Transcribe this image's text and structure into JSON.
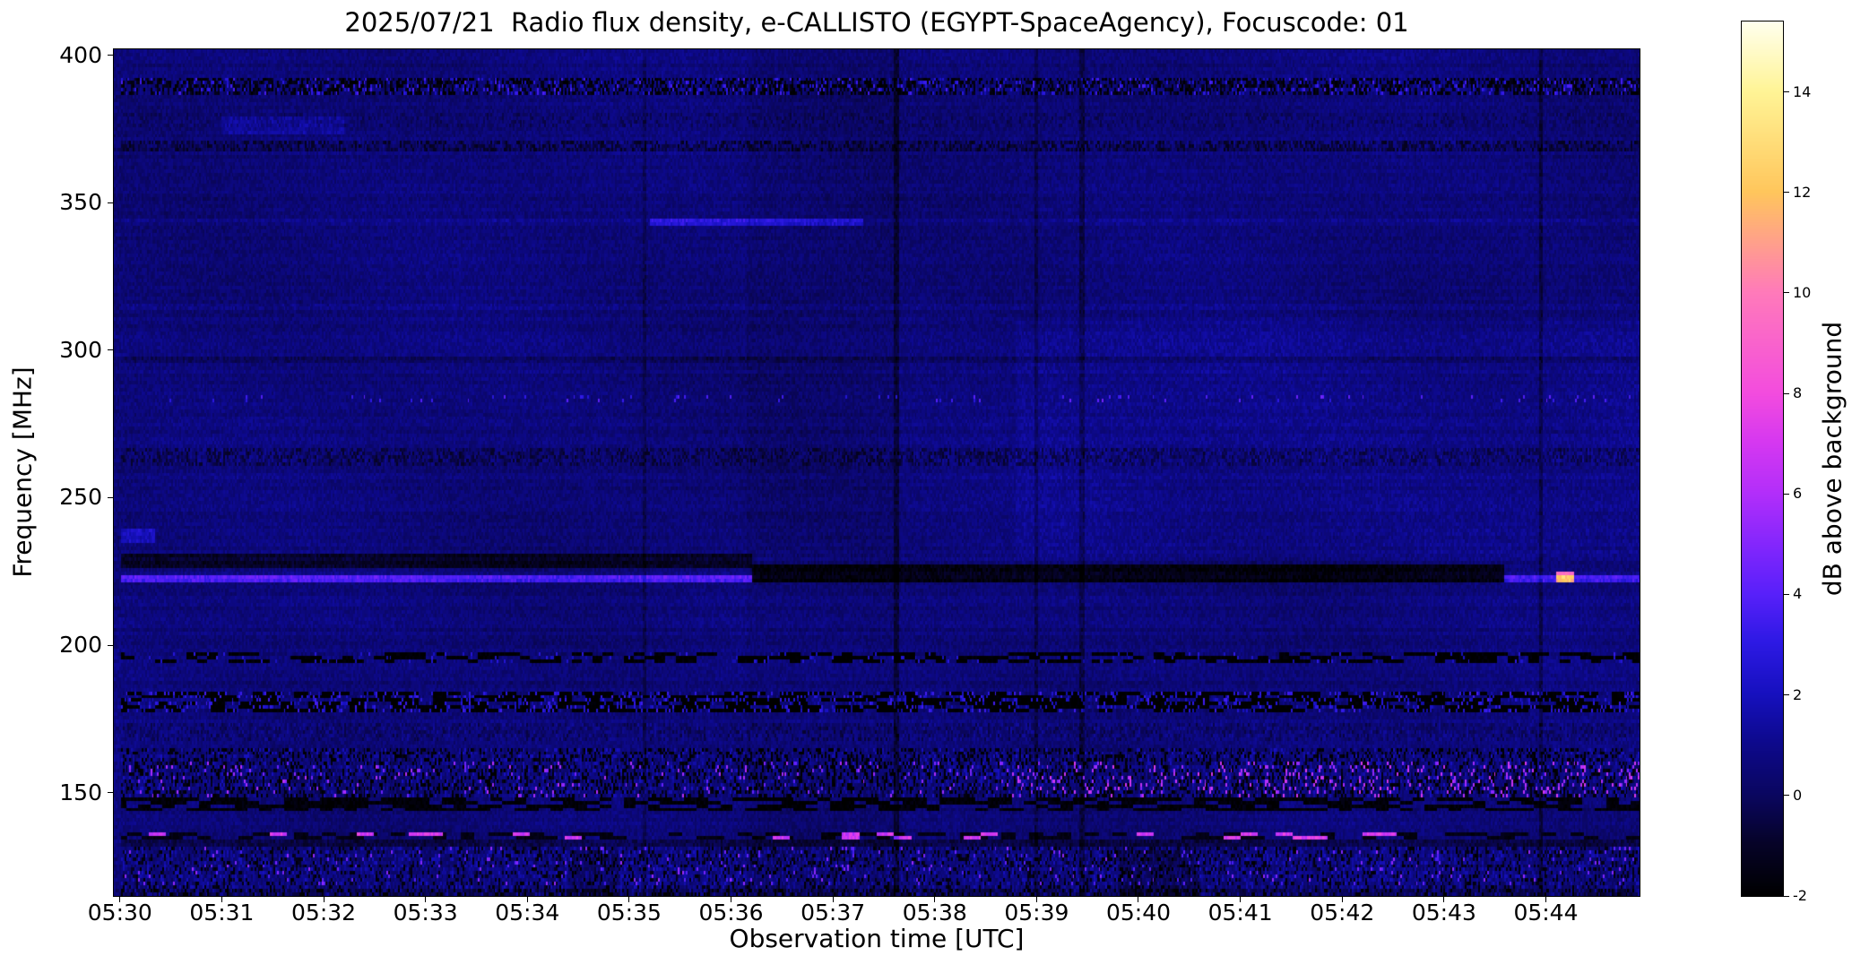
{
  "chart_data": {
    "type": "heatmap",
    "title": "2025/07/21  Radio flux density, e-CALLISTO (EGYPT-SpaceAgency), Focuscode: 01",
    "xlabel": "Observation time [UTC]",
    "ylabel": "Frequency [MHz]",
    "x_axis": {
      "start_minute_offset": -0.06,
      "end_minute_offset": 14.92,
      "tick_minutes": [
        0,
        1,
        2,
        3,
        4,
        5,
        6,
        7,
        8,
        9,
        10,
        11,
        12,
        13,
        14
      ],
      "tick_labels": [
        "05:30",
        "05:31",
        "05:32",
        "05:33",
        "05:34",
        "05:35",
        "05:36",
        "05:37",
        "05:38",
        "05:39",
        "05:40",
        "05:41",
        "05:42",
        "05:43",
        "05:44"
      ]
    },
    "y_axis": {
      "min_mhz": 115,
      "max_mhz": 402,
      "ticks": [
        150,
        200,
        250,
        300,
        350,
        400
      ],
      "tick_labels": [
        "150",
        "200",
        "250",
        "300",
        "350",
        "400"
      ]
    },
    "colorbar": {
      "label": "dB above background",
      "vmin": -2,
      "vmax": 15.4,
      "ticks": [
        -2,
        0,
        2,
        4,
        6,
        8,
        10,
        12,
        14
      ],
      "tick_labels": [
        "-2",
        "0",
        "2",
        "4",
        "6",
        "8",
        "10",
        "12",
        "14"
      ],
      "colormap_stops": [
        [
          0.0,
          [
            0,
            0,
            0
          ]
        ],
        [
          0.06,
          [
            6,
            3,
            40
          ]
        ],
        [
          0.115,
          [
            10,
            6,
            95
          ]
        ],
        [
          0.175,
          [
            13,
            9,
            140
          ]
        ],
        [
          0.23,
          [
            22,
            16,
            190
          ]
        ],
        [
          0.29,
          [
            45,
            25,
            228
          ]
        ],
        [
          0.345,
          [
            88,
            32,
            250
          ]
        ],
        [
          0.4,
          [
            130,
            38,
            252
          ]
        ],
        [
          0.46,
          [
            178,
            46,
            250
          ]
        ],
        [
          0.52,
          [
            214,
            56,
            240
          ]
        ],
        [
          0.575,
          [
            243,
            76,
            222
          ]
        ],
        [
          0.69,
          [
            255,
            122,
            186
          ]
        ],
        [
          0.805,
          [
            255,
            198,
            92
          ]
        ],
        [
          0.92,
          [
            255,
            244,
            150
          ]
        ],
        [
          1.0,
          [
            255,
            255,
            238
          ]
        ]
      ]
    },
    "background": {
      "base": 0.55,
      "noise": 1.0,
      "row_noise": 0.45,
      "mottle_amp": 0.22
    },
    "features": [
      {
        "name": "rfi-band-390-dark",
        "f0": 387,
        "f1": 393,
        "t0": 0,
        "t1": 15,
        "mode": "speckle",
        "density": 0.5,
        "value": -1.6,
        "jitter": 1.2
      },
      {
        "name": "rfi-band-390-bright",
        "f0": 387,
        "f1": 393,
        "t0": 0,
        "t1": 15,
        "mode": "speckle",
        "density": 0.12,
        "value": 2.8,
        "jitter": 2.0
      },
      {
        "name": "texture-band-378",
        "f0": 376,
        "f1": 380,
        "t0": 0,
        "t1": 15,
        "mode": "speckle",
        "density": 0.5,
        "value": 0.2,
        "jitter": 1.5
      },
      {
        "name": "patch-379",
        "f0": 373,
        "f1": 379,
        "t0": 1.0,
        "t1": 2.2,
        "mode": "add",
        "value": 0.8,
        "jitter": 0.5
      },
      {
        "name": "rfi-band-369",
        "f0": 367,
        "f1": 371,
        "t0": 0,
        "t1": 15,
        "mode": "speckle",
        "density": 0.6,
        "value": -0.6,
        "jitter": 1.6
      },
      {
        "name": "line-343-faint",
        "f0": 342,
        "f1": 344.5,
        "t0": 0,
        "t1": 15,
        "mode": "add",
        "value": 0.4,
        "jitter": 0.3
      },
      {
        "name": "line-343-bright",
        "f0": 342,
        "f1": 344.5,
        "t0": 5.2,
        "t1": 7.3,
        "mode": "add",
        "value": 1.8,
        "jitter": 0.8
      },
      {
        "name": "line-315",
        "f0": 314,
        "f1": 316,
        "t0": 0,
        "t1": 15,
        "mode": "add",
        "value": 0.5,
        "jitter": 0.4
      },
      {
        "name": "line-297-dark",
        "f0": 296,
        "f1": 298,
        "t0": 0,
        "t1": 15,
        "mode": "add",
        "value": -0.5,
        "jitter": 0.3
      },
      {
        "name": "dotted-line-283",
        "f0": 282.5,
        "f1": 284.8,
        "t0": 0,
        "t1": 15,
        "mode": "speckle",
        "density": 0.035,
        "value": 3.4,
        "jitter": 1.5
      },
      {
        "name": "texture-band-264",
        "f0": 261,
        "f1": 267,
        "t0": 0,
        "t1": 15,
        "mode": "speckle",
        "density": 0.55,
        "value": -0.4,
        "jitter": 1.4
      },
      {
        "name": "bright-region-right",
        "f0": 230,
        "f1": 310,
        "t0": 8.8,
        "t1": 15,
        "mode": "add",
        "value": 0.35,
        "jitter": 0.3
      },
      {
        "name": "patch-237-left-edge",
        "f0": 235,
        "f1": 239,
        "t0": 0,
        "t1": 0.35,
        "mode": "add",
        "value": 1.5,
        "jitter": 0.5
      },
      {
        "name": "dark-band-229-early",
        "f0": 226,
        "f1": 231,
        "t0": 0,
        "t1": 6.2,
        "mode": "add",
        "value": -1.6,
        "jitter": 0.4
      },
      {
        "name": "dark-band-225-late",
        "f0": 221,
        "f1": 228,
        "t0": 6.2,
        "t1": 13.6,
        "mode": "add",
        "value": -2.1,
        "jitter": 0.4
      },
      {
        "name": "bright-line-222",
        "f0": 221.5,
        "f1": 224,
        "t0": 0,
        "t1": 6.2,
        "mode": "add",
        "value": 3.2,
        "jitter": 0.8
      },
      {
        "name": "bright-line-222-tail",
        "f0": 221.5,
        "f1": 224,
        "t0": 13.6,
        "t1": 15,
        "mode": "add",
        "value": 2.8,
        "jitter": 0.8
      },
      {
        "name": "bright-dot-224",
        "f0": 222,
        "f1": 225.5,
        "t0": 14.1,
        "t1": 14.28,
        "mode": "add",
        "value": 8.5,
        "jitter": 1.0
      },
      {
        "name": "dashed-band-196-dark",
        "f0": 194,
        "f1": 198,
        "t0": 0,
        "t1": 15,
        "mode": "dashes",
        "density": 0.5,
        "value": -2.0,
        "jitter": 0.8,
        "dash": 6
      },
      {
        "name": "dots-196",
        "f0": 194,
        "f1": 198,
        "t0": 0,
        "t1": 15,
        "mode": "speckle",
        "density": 0.05,
        "value": 2.4,
        "jitter": 1.6
      },
      {
        "name": "rfi-band-181-dark",
        "f0": 177,
        "f1": 184,
        "t0": 0,
        "t1": 15,
        "mode": "dashes",
        "density": 0.65,
        "value": -2.0,
        "jitter": 0.6,
        "dash": 8
      },
      {
        "name": "rfi-band-181-bright",
        "f0": 177,
        "f1": 184,
        "t0": 0,
        "t1": 15,
        "mode": "speckle",
        "density": 0.18,
        "value": 2.5,
        "jitter": 2.2
      },
      {
        "name": "texture-band-171",
        "f0": 168,
        "f1": 174,
        "t0": 0,
        "t1": 15,
        "mode": "speckle",
        "density": 0.6,
        "value": 0.4,
        "jitter": 2.0
      },
      {
        "name": "noisy-region-157",
        "f0": 149,
        "f1": 165,
        "t0": 0,
        "t1": 15,
        "mode": "speckle",
        "density": 0.5,
        "value": 0.8,
        "jitter": 2.6
      },
      {
        "name": "noisy-region-157-dark",
        "f0": 149,
        "f1": 165,
        "t0": 0,
        "t1": 15,
        "mode": "speckle",
        "density": 0.25,
        "value": -1.8,
        "jitter": 1.0
      },
      {
        "name": "pink-speckle-154-left",
        "f0": 148,
        "f1": 160,
        "t0": 0,
        "t1": 8.7,
        "mode": "speckle",
        "density": 0.04,
        "value": 5.2,
        "jitter": 2.0
      },
      {
        "name": "pink-speckle-154-right",
        "f0": 148,
        "f1": 160,
        "t0": 8.7,
        "t1": 15,
        "mode": "speckle",
        "density": 0.1,
        "value": 6.0,
        "jitter": 2.5
      },
      {
        "name": "dark-band-146",
        "f0": 144,
        "f1": 148,
        "t0": 0,
        "t1": 15,
        "mode": "dashes",
        "density": 0.6,
        "value": -1.8,
        "jitter": 0.8,
        "dash": 7
      },
      {
        "name": "dark-dashes-135",
        "f0": 134,
        "f1": 137,
        "t0": 0,
        "t1": 15,
        "mode": "dashes",
        "density": 0.45,
        "value": -1.5,
        "jitter": 0.6,
        "dash": 8
      },
      {
        "name": "pink-dashes-135",
        "f0": 134,
        "f1": 137,
        "t0": 0,
        "t1": 15,
        "mode": "dashes",
        "density": 0.18,
        "value": 7.0,
        "jitter": 2.0,
        "dash": 10
      },
      {
        "name": "dark-line-133",
        "f0": 132,
        "f1": 134,
        "t0": 0,
        "t1": 15,
        "mode": "add",
        "value": -1.2,
        "jitter": 0.5
      },
      {
        "name": "bottom-noise",
        "f0": 115,
        "f1": 132,
        "t0": 0,
        "t1": 15,
        "mode": "speckle",
        "density": 0.55,
        "value": 0.9,
        "jitter": 2.2
      },
      {
        "name": "bottom-noise-dark",
        "f0": 115,
        "f1": 132,
        "t0": 0,
        "t1": 15,
        "mode": "speckle",
        "density": 0.2,
        "value": -1.5,
        "jitter": 1.0
      },
      {
        "name": "bottom-pink-speckle",
        "f0": 118,
        "f1": 132,
        "t0": 0,
        "t1": 15,
        "mode": "speckle",
        "density": 0.03,
        "value": 4.5,
        "jitter": 2.0
      },
      {
        "name": "bottom-dark-patch-1",
        "f0": 115,
        "f1": 130,
        "t0": 9.8,
        "t1": 10.6,
        "mode": "add",
        "value": -0.8,
        "jitter": 0.3
      },
      {
        "name": "bottom-dark-patch-2",
        "f0": 115,
        "f1": 130,
        "t0": 4.4,
        "t1": 4.9,
        "mode": "add",
        "value": -0.7,
        "jitter": 0.3
      },
      {
        "name": "bottom-edge-dark",
        "f0": 115,
        "f1": 117.5,
        "t0": 0,
        "t1": 15,
        "mode": "add",
        "value": -0.6,
        "jitter": 0.3
      }
    ],
    "vertical_lines": [
      {
        "t": 5.15,
        "width": 0.02,
        "delta": -0.7
      },
      {
        "t": 6.9,
        "width": 0.75,
        "delta": -0.22
      },
      {
        "t": 7.62,
        "width": 0.025,
        "delta": -1.1
      },
      {
        "t": 9.0,
        "width": 0.02,
        "delta": -0.9
      },
      {
        "t": 9.45,
        "width": 0.02,
        "delta": -1.0
      },
      {
        "t": 13.95,
        "width": 0.025,
        "delta": -1.1
      }
    ]
  }
}
